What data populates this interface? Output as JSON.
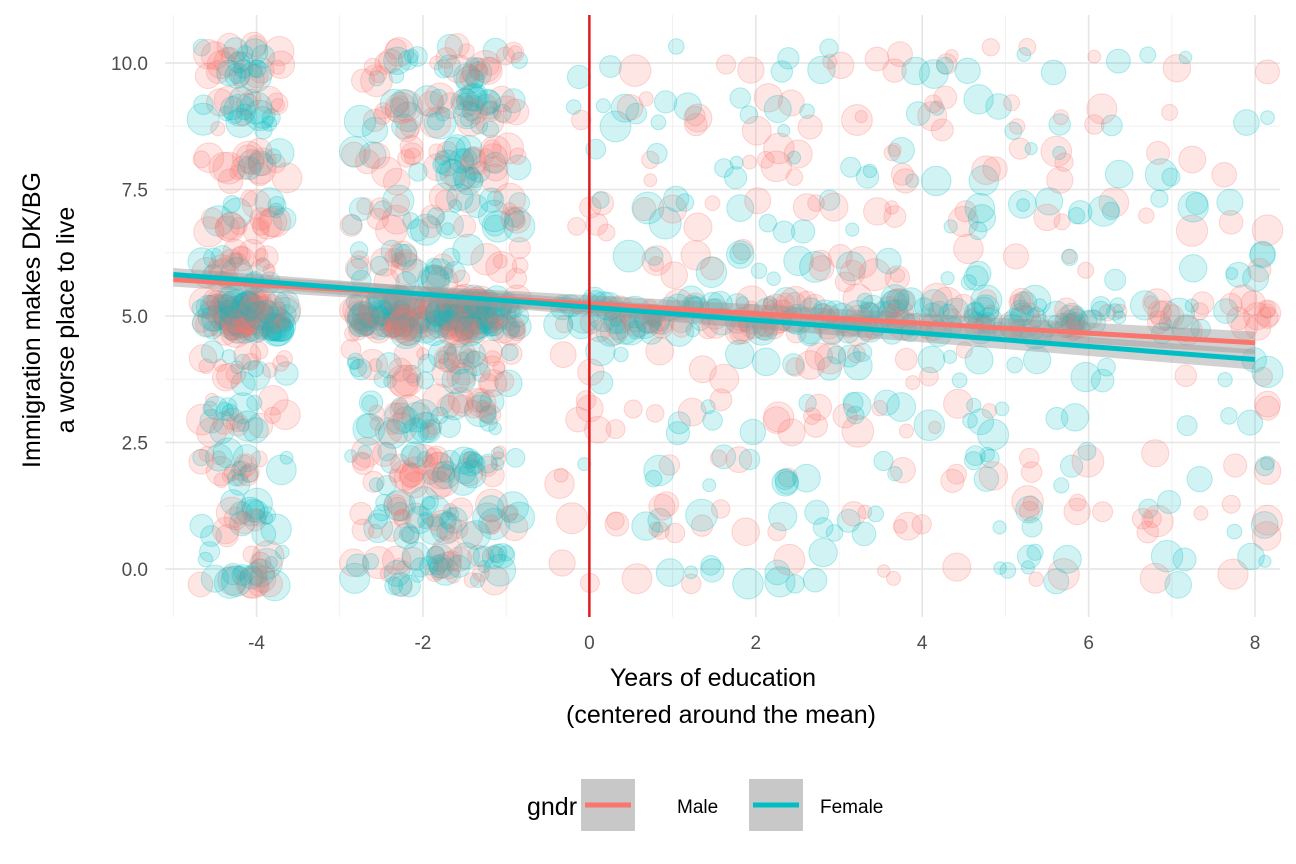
{
  "chart_data": {
    "type": "scatter",
    "title": "",
    "xlabel_lines": [
      "Years of education",
      "(centered around the mean)"
    ],
    "ylabel_lines": [
      "Immigration makes DK/BG",
      "a worse place to live"
    ],
    "xlim": [
      -5.1,
      8.3
    ],
    "ylim": [
      -0.95,
      10.95
    ],
    "x_ticks": [
      -4,
      -2,
      0,
      2,
      4,
      6,
      8
    ],
    "x_tick_labels": [
      "-4",
      "-2",
      "0",
      "2",
      "4",
      "6",
      "8"
    ],
    "y_ticks": [
      0,
      2.5,
      5,
      7.5,
      10
    ],
    "y_tick_labels": [
      "0.0",
      "2.5",
      "5.0",
      "7.5",
      "10.0"
    ],
    "grid": true,
    "reference_line": {
      "x": 0,
      "color": "#e31a1c"
    },
    "point_alpha": 0.18,
    "legend": {
      "title": "gndr",
      "placement": "bottom",
      "entries": [
        {
          "label": "Male",
          "color": "#f8766d"
        },
        {
          "label": "Female",
          "color": "#00bfc4"
        }
      ]
    },
    "series": [
      {
        "name": "Male",
        "color": "#f8766d",
        "fit": {
          "x": [
            -5,
            8
          ],
          "y": [
            5.72,
            4.47
          ],
          "ci_halfwidth": [
            0.14,
            0.22
          ]
        }
      },
      {
        "name": "Female",
        "color": "#00bfc4",
        "fit": {
          "x": [
            -5,
            8
          ],
          "y": [
            5.82,
            4.14
          ],
          "ci_halfwidth": [
            0.13,
            0.2
          ]
        }
      }
    ]
  }
}
